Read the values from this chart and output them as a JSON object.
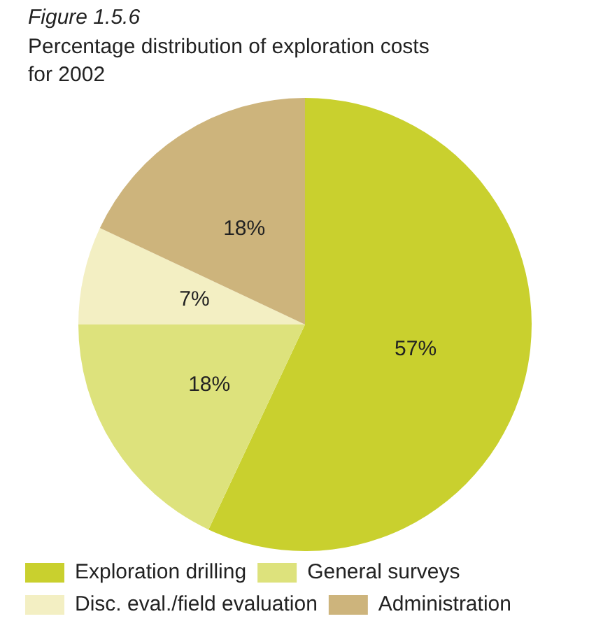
{
  "chart_data": {
    "type": "pie",
    "title": "Figure 1.5.6",
    "subtitle": "Percentage distribution of exploration costs for 2002",
    "categories": [
      "Exploration drilling",
      "General surveys",
      "Disc. eval./field evaluation",
      "Administration"
    ],
    "values": [
      57,
      18,
      7,
      18
    ],
    "colors": [
      "#c9d02e",
      "#dde27c",
      "#f3efc3",
      "#cdb47c"
    ],
    "value_labels": [
      "57%",
      "18%",
      "7%",
      "18%"
    ],
    "legend": "bottom"
  }
}
